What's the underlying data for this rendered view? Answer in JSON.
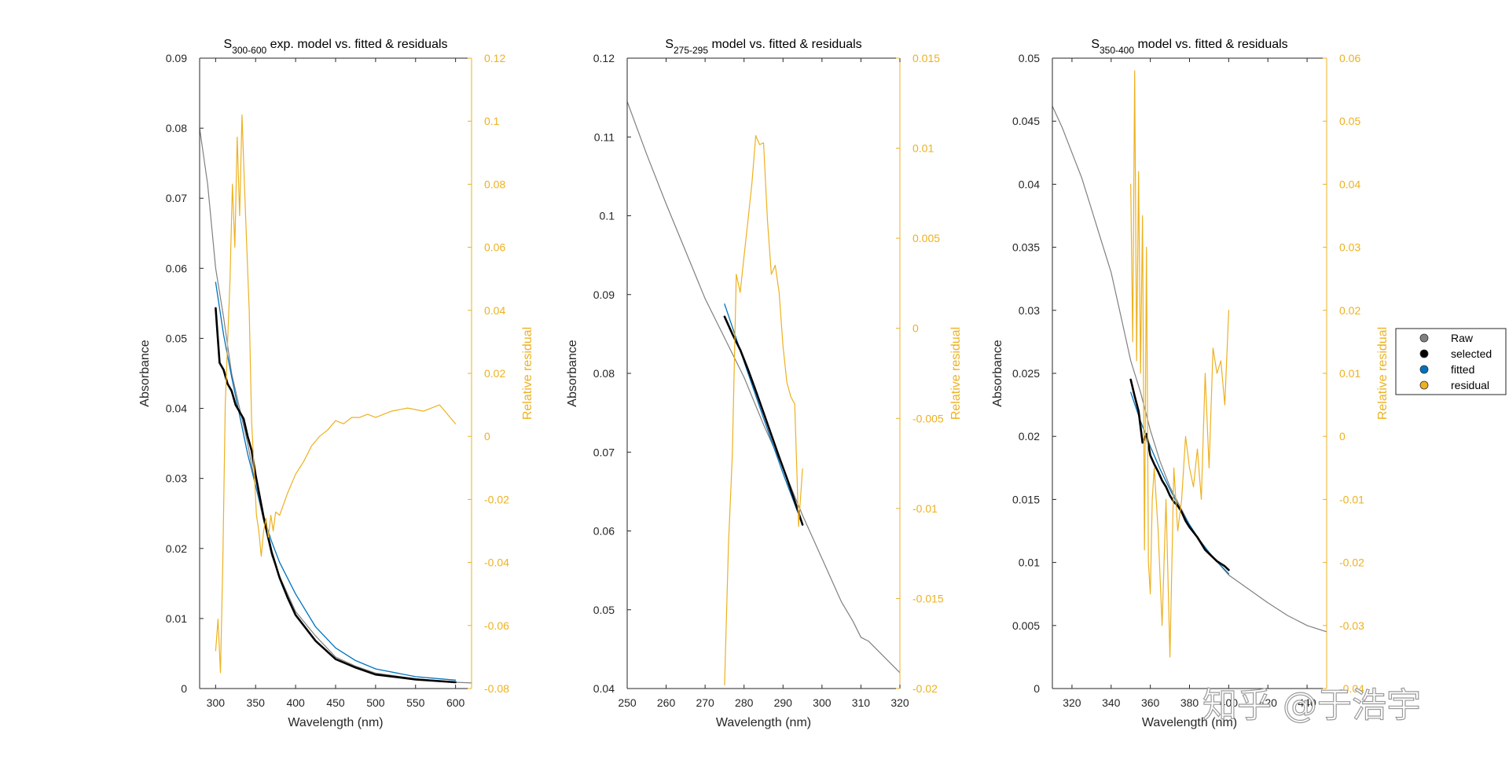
{
  "watermark": "知乎 @于浩宇",
  "legend": {
    "items": [
      {
        "label": "Raw",
        "color": "#808080"
      },
      {
        "label": "selected",
        "color": "#000000"
      },
      {
        "label": "fitted",
        "color": "#0072BD"
      },
      {
        "label": "residual",
        "color": "#EDB120"
      }
    ]
  },
  "colors": {
    "raw": "#808080",
    "selected": "#000000",
    "fitted": "#0072BD",
    "residual": "#EDB120",
    "axis": "#262626"
  },
  "chart_data": [
    {
      "type": "line",
      "title": {
        "main": "S",
        "sub": "300-600",
        "rest": " exp. model vs. fitted & residuals"
      },
      "xlabel": "Wavelength (nm)",
      "ylabel": "Absorbance",
      "ylabel_right": "Relative residual",
      "xlim": [
        280,
        620
      ],
      "ylim": [
        0,
        0.09
      ],
      "ylim_right": [
        -0.08,
        0.12
      ],
      "xticks": [
        300,
        350,
        400,
        450,
        500,
        550,
        600
      ],
      "yticks": [
        0,
        0.01,
        0.02,
        0.03,
        0.04,
        0.05,
        0.06,
        0.07,
        0.08,
        0.09
      ],
      "yticks_right": [
        -0.08,
        -0.06,
        -0.04,
        -0.02,
        0,
        0.02,
        0.04,
        0.06,
        0.08,
        0.1,
        0.12
      ],
      "xtick_labels": [
        "300",
        "350",
        "400",
        "450",
        "500",
        "550",
        "600"
      ],
      "ytick_labels": [
        "0",
        "0.01",
        "0.02",
        "0.03",
        "0.04",
        "0.05",
        "0.06",
        "0.07",
        "0.08",
        "0.09"
      ],
      "ytick_right_labels": [
        "-0.08",
        "-0.06",
        "-0.04",
        "-0.02",
        "0",
        "0.02",
        "0.04",
        "0.06",
        "0.08",
        "0.1",
        "0.12"
      ],
      "series": [
        {
          "key": "raw",
          "axis": "left",
          "x": [
            280,
            290,
            300,
            310,
            320,
            330,
            340,
            350,
            360,
            370,
            380,
            400,
            425,
            450,
            475,
            500,
            550,
            600,
            620
          ],
          "y": [
            0.08,
            0.072,
            0.06,
            0.053,
            0.045,
            0.04,
            0.035,
            0.029,
            0.024,
            0.019,
            0.016,
            0.011,
            0.0075,
            0.0045,
            0.0032,
            0.0022,
            0.0014,
            0.0009,
            0.0008
          ]
        },
        {
          "key": "fitted",
          "axis": "left",
          "x": [
            300,
            310,
            320,
            330,
            340,
            350,
            360,
            370,
            380,
            400,
            425,
            450,
            475,
            500,
            550,
            600
          ],
          "y": [
            0.058,
            0.0505,
            0.0445,
            0.039,
            0.0335,
            0.029,
            0.0245,
            0.021,
            0.018,
            0.0135,
            0.0088,
            0.0058,
            0.004,
            0.0028,
            0.0017,
            0.0012
          ]
        },
        {
          "key": "selected",
          "axis": "left",
          "x": [
            300,
            305,
            310,
            315,
            320,
            325,
            330,
            335,
            340,
            345,
            350,
            355,
            360,
            365,
            370,
            380,
            390,
            400,
            425,
            450,
            475,
            500,
            550,
            600
          ],
          "y": [
            0.0543,
            0.0465,
            0.0455,
            0.0435,
            0.0425,
            0.0405,
            0.0395,
            0.0385,
            0.036,
            0.034,
            0.0305,
            0.0275,
            0.0245,
            0.022,
            0.0195,
            0.0158,
            0.013,
            0.0105,
            0.0068,
            0.0042,
            0.003,
            0.002,
            0.0013,
            0.0009
          ]
        },
        {
          "key": "residual",
          "axis": "right",
          "x": [
            300,
            303,
            306,
            309,
            312,
            315,
            318,
            321,
            324,
            327,
            330,
            333,
            336,
            339,
            342,
            345,
            348,
            351,
            354,
            357,
            360,
            363,
            366,
            369,
            372,
            375,
            380,
            390,
            400,
            410,
            420,
            430,
            440,
            450,
            460,
            470,
            480,
            490,
            500,
            520,
            540,
            560,
            580,
            600
          ],
          "y": [
            -0.068,
            -0.058,
            -0.075,
            -0.04,
            0.01,
            0.03,
            0.05,
            0.08,
            0.06,
            0.095,
            0.07,
            0.102,
            0.08,
            0.06,
            0.04,
            0.005,
            -0.01,
            -0.025,
            -0.03,
            -0.038,
            -0.03,
            -0.026,
            -0.032,
            -0.025,
            -0.03,
            -0.024,
            -0.025,
            -0.018,
            -0.012,
            -0.008,
            -0.003,
            0.0,
            0.002,
            0.005,
            0.004,
            0.006,
            0.006,
            0.007,
            0.006,
            0.008,
            0.009,
            0.008,
            0.01,
            0.004
          ]
        }
      ]
    },
    {
      "type": "line",
      "title": {
        "main": "S",
        "sub": "275-295",
        "rest": " model vs. fitted & residuals"
      },
      "xlabel": "Wavelength (nm)",
      "ylabel": "Absorbance",
      "ylabel_right": "Relative residual",
      "xlim": [
        250,
        320
      ],
      "ylim": [
        0.04,
        0.12
      ],
      "ylim_right": [
        -0.02,
        0.015
      ],
      "xticks": [
        250,
        260,
        270,
        280,
        290,
        300,
        310,
        320
      ],
      "yticks": [
        0.04,
        0.05,
        0.06,
        0.07,
        0.08,
        0.09,
        0.1,
        0.11,
        0.12
      ],
      "yticks_right": [
        -0.02,
        -0.015,
        -0.01,
        -0.005,
        0,
        0.005,
        0.01,
        0.015
      ],
      "xtick_labels": [
        "250",
        "260",
        "270",
        "280",
        "290",
        "300",
        "310",
        "320"
      ],
      "ytick_labels": [
        "0.04",
        "0.05",
        "0.06",
        "0.07",
        "0.08",
        "0.09",
        "0.1",
        "0.11",
        "0.12"
      ],
      "ytick_right_labels": [
        "-0.02",
        "-0.015",
        "-0.01",
        "-0.005",
        "0",
        "0.005",
        "0.01",
        "0.015"
      ],
      "series": [
        {
          "key": "raw",
          "axis": "left",
          "x": [
            250,
            255,
            260,
            265,
            270,
            275,
            280,
            285,
            290,
            295,
            300,
            305,
            308,
            310,
            312,
            315,
            318,
            320
          ],
          "y": [
            0.1145,
            0.1078,
            0.1015,
            0.0955,
            0.0895,
            0.0845,
            0.0795,
            0.0735,
            0.068,
            0.062,
            0.0565,
            0.051,
            0.0485,
            0.0465,
            0.046,
            0.0445,
            0.043,
            0.042
          ]
        },
        {
          "key": "fitted",
          "axis": "left",
          "x": [
            275,
            280,
            285,
            290,
            295
          ],
          "y": [
            0.0888,
            0.0815,
            0.0743,
            0.0673,
            0.0608
          ]
        },
        {
          "key": "selected",
          "axis": "left",
          "x": [
            275,
            277,
            279,
            281,
            283,
            285,
            287,
            289,
            291,
            293,
            295
          ],
          "y": [
            0.0872,
            0.085,
            0.083,
            0.0805,
            0.0778,
            0.075,
            0.0722,
            0.0694,
            0.0667,
            0.0638,
            0.0608
          ]
        },
        {
          "key": "residual",
          "axis": "right",
          "x": [
            275,
            276,
            277,
            278,
            279,
            280,
            281,
            282,
            283,
            284,
            285,
            286,
            287,
            288,
            289,
            290,
            291,
            292,
            293,
            294,
            295
          ],
          "y": [
            -0.0198,
            -0.012,
            -0.007,
            0.003,
            0.002,
            0.004,
            0.006,
            0.008,
            0.0107,
            0.0102,
            0.0103,
            0.006,
            0.003,
            0.0035,
            0.002,
            -0.001,
            -0.003,
            -0.0038,
            -0.0042,
            -0.011,
            -0.0078
          ]
        }
      ]
    },
    {
      "type": "line",
      "title": {
        "main": "S",
        "sub": "350-400",
        "rest": " model vs. fitted & residuals"
      },
      "xlabel": "Wavelength (nm)",
      "ylabel": "Absorbance",
      "ylabel_right": "Relative residual",
      "xlim": [
        310,
        450
      ],
      "ylim": [
        0,
        0.05
      ],
      "ylim_right": [
        -0.04,
        0.06
      ],
      "xticks": [
        320,
        340,
        360,
        380,
        400,
        420,
        440
      ],
      "yticks": [
        0,
        0.005,
        0.01,
        0.015,
        0.02,
        0.025,
        0.03,
        0.035,
        0.04,
        0.045,
        0.05
      ],
      "yticks_right": [
        -0.04,
        -0.03,
        -0.02,
        -0.01,
        0,
        0.01,
        0.02,
        0.03,
        0.04,
        0.05,
        0.06
      ],
      "xtick_labels": [
        "320",
        "340",
        "360",
        "380",
        "400",
        "420",
        "440"
      ],
      "ytick_labels": [
        "0",
        "0.005",
        "0.01",
        "0.015",
        "0.02",
        "0.025",
        "0.03",
        "0.035",
        "0.04",
        "0.045",
        "0.05"
      ],
      "ytick_right_labels": [
        "-0.04",
        "-0.03",
        "-0.02",
        "-0.01",
        "0",
        "0.01",
        "0.02",
        "0.03",
        "0.04",
        "0.05",
        "0.06"
      ],
      "series": [
        {
          "key": "raw",
          "axis": "left",
          "x": [
            310,
            315,
            320,
            325,
            330,
            335,
            340,
            345,
            350,
            355,
            360,
            365,
            370,
            375,
            380,
            385,
            390,
            400,
            410,
            420,
            430,
            440,
            450
          ],
          "y": [
            0.0462,
            0.0445,
            0.0425,
            0.0405,
            0.038,
            0.0355,
            0.033,
            0.0295,
            0.026,
            0.0235,
            0.0205,
            0.018,
            0.016,
            0.0145,
            0.013,
            0.0118,
            0.0108,
            0.009,
            0.0079,
            0.0068,
            0.0058,
            0.005,
            0.0045
          ]
        },
        {
          "key": "fitted",
          "axis": "left",
          "x": [
            350,
            355,
            360,
            365,
            370,
            375,
            380,
            385,
            390,
            395,
            400
          ],
          "y": [
            0.0235,
            0.0212,
            0.0192,
            0.0174,
            0.0158,
            0.0143,
            0.013,
            0.0118,
            0.0108,
            0.0099,
            0.0091
          ]
        },
        {
          "key": "selected",
          "axis": "left",
          "x": [
            350,
            352,
            354,
            356,
            358,
            360,
            362,
            364,
            366,
            368,
            370,
            372,
            374,
            376,
            378,
            380,
            382,
            384,
            386,
            388,
            390,
            392,
            394,
            396,
            398,
            400
          ],
          "y": [
            0.0245,
            0.0232,
            0.022,
            0.0195,
            0.0202,
            0.0185,
            0.0178,
            0.0172,
            0.0165,
            0.016,
            0.0153,
            0.0148,
            0.0145,
            0.014,
            0.0133,
            0.0128,
            0.0124,
            0.012,
            0.0115,
            0.011,
            0.0107,
            0.0104,
            0.0101,
            0.0099,
            0.0097,
            0.0094
          ]
        },
        {
          "key": "residual",
          "axis": "right",
          "x": [
            350,
            351,
            352,
            353,
            354,
            355,
            356,
            357,
            358,
            359,
            360,
            361,
            362,
            364,
            366,
            368,
            370,
            371,
            372,
            374,
            376,
            378,
            380,
            382,
            384,
            386,
            388,
            390,
            392,
            394,
            396,
            398,
            400
          ],
          "y": [
            0.04,
            0.015,
            0.058,
            0.012,
            0.042,
            0.01,
            0.035,
            -0.018,
            0.03,
            -0.02,
            -0.025,
            -0.01,
            -0.005,
            -0.015,
            -0.03,
            -0.01,
            -0.035,
            -0.02,
            -0.005,
            -0.015,
            -0.01,
            0.0,
            -0.005,
            -0.008,
            -0.002,
            -0.01,
            0.01,
            -0.005,
            0.014,
            0.01,
            0.012,
            0.005,
            0.02
          ]
        }
      ]
    }
  ]
}
